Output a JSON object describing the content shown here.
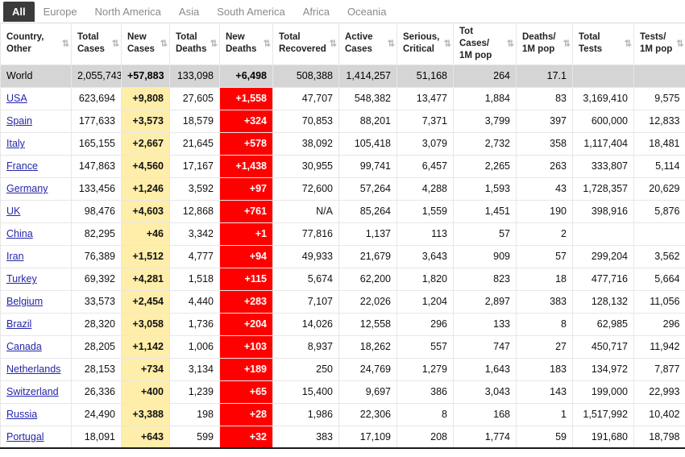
{
  "colors": {
    "active_tab_bg": "#3B3B3B",
    "active_tab_text": "#FFFFFF",
    "tab_text": "#8A8A8A",
    "new_cases_bg": "#FFEEAA",
    "new_deaths_bg": "#FF0000",
    "new_deaths_text": "#FFFFFF",
    "world_row_bg": "#D5D5D5",
    "link_color": "#2525AA",
    "border_color": "#E7E7E7"
  },
  "tabs": {
    "items": [
      {
        "label": "All",
        "active": true
      },
      {
        "label": "Europe",
        "active": false
      },
      {
        "label": "North America",
        "active": false
      },
      {
        "label": "Asia",
        "active": false
      },
      {
        "label": "South America",
        "active": false
      },
      {
        "label": "Africa",
        "active": false
      },
      {
        "label": "Oceania",
        "active": false
      }
    ]
  },
  "table": {
    "sort_icon": "⇅",
    "columns": [
      {
        "label": "Country,\nOther"
      },
      {
        "label": "Total\nCases"
      },
      {
        "label": "New\nCases"
      },
      {
        "label": "Total\nDeaths"
      },
      {
        "label": "New\nDeaths"
      },
      {
        "label": "Total\nRecovered"
      },
      {
        "label": "Active\nCases"
      },
      {
        "label": "Serious,\nCritical"
      },
      {
        "label": "Tot Cases/\n1M pop"
      },
      {
        "label": "Deaths/\n1M pop"
      },
      {
        "label": "Total\nTests"
      },
      {
        "label": "Tests/\n1M pop"
      }
    ],
    "rows": [
      {
        "country": "World",
        "is_world": true,
        "cells": [
          "2,055,743",
          "+57,883",
          "133,098",
          "+6,498",
          "508,388",
          "1,414,257",
          "51,168",
          "264",
          "17.1",
          "",
          ""
        ]
      },
      {
        "country": "USA",
        "cells": [
          "623,694",
          "+9,808",
          "27,605",
          "+1,558",
          "47,707",
          "548,382",
          "13,477",
          "1,884",
          "83",
          "3,169,410",
          "9,575"
        ]
      },
      {
        "country": "Spain",
        "cells": [
          "177,633",
          "+3,573",
          "18,579",
          "+324",
          "70,853",
          "88,201",
          "7,371",
          "3,799",
          "397",
          "600,000",
          "12,833"
        ]
      },
      {
        "country": "Italy",
        "cells": [
          "165,155",
          "+2,667",
          "21,645",
          "+578",
          "38,092",
          "105,418",
          "3,079",
          "2,732",
          "358",
          "1,117,404",
          "18,481"
        ]
      },
      {
        "country": "France",
        "cells": [
          "147,863",
          "+4,560",
          "17,167",
          "+1,438",
          "30,955",
          "99,741",
          "6,457",
          "2,265",
          "263",
          "333,807",
          "5,114"
        ]
      },
      {
        "country": "Germany",
        "cells": [
          "133,456",
          "+1,246",
          "3,592",
          "+97",
          "72,600",
          "57,264",
          "4,288",
          "1,593",
          "43",
          "1,728,357",
          "20,629"
        ]
      },
      {
        "country": "UK",
        "cells": [
          "98,476",
          "+4,603",
          "12,868",
          "+761",
          "N/A",
          "85,264",
          "1,559",
          "1,451",
          "190",
          "398,916",
          "5,876"
        ]
      },
      {
        "country": "China",
        "cells": [
          "82,295",
          "+46",
          "3,342",
          "+1",
          "77,816",
          "1,137",
          "113",
          "57",
          "2",
          "",
          ""
        ]
      },
      {
        "country": "Iran",
        "cells": [
          "76,389",
          "+1,512",
          "4,777",
          "+94",
          "49,933",
          "21,679",
          "3,643",
          "909",
          "57",
          "299,204",
          "3,562"
        ]
      },
      {
        "country": "Turkey",
        "cells": [
          "69,392",
          "+4,281",
          "1,518",
          "+115",
          "5,674",
          "62,200",
          "1,820",
          "823",
          "18",
          "477,716",
          "5,664"
        ]
      },
      {
        "country": "Belgium",
        "cells": [
          "33,573",
          "+2,454",
          "4,440",
          "+283",
          "7,107",
          "22,026",
          "1,204",
          "2,897",
          "383",
          "128,132",
          "11,056"
        ]
      },
      {
        "country": "Brazil",
        "cells": [
          "28,320",
          "+3,058",
          "1,736",
          "+204",
          "14,026",
          "12,558",
          "296",
          "133",
          "8",
          "62,985",
          "296"
        ]
      },
      {
        "country": "Canada",
        "cells": [
          "28,205",
          "+1,142",
          "1,006",
          "+103",
          "8,937",
          "18,262",
          "557",
          "747",
          "27",
          "450,717",
          "11,942"
        ]
      },
      {
        "country": "Netherlands",
        "cells": [
          "28,153",
          "+734",
          "3,134",
          "+189",
          "250",
          "24,769",
          "1,279",
          "1,643",
          "183",
          "134,972",
          "7,877"
        ]
      },
      {
        "country": "Switzerland",
        "cells": [
          "26,336",
          "+400",
          "1,239",
          "+65",
          "15,400",
          "9,697",
          "386",
          "3,043",
          "143",
          "199,000",
          "22,993"
        ]
      },
      {
        "country": "Russia",
        "cells": [
          "24,490",
          "+3,388",
          "198",
          "+28",
          "1,986",
          "22,306",
          "8",
          "168",
          "1",
          "1,517,992",
          "10,402"
        ]
      },
      {
        "country": "Portugal",
        "cells": [
          "18,091",
          "+643",
          "599",
          "+32",
          "383",
          "17,109",
          "208",
          "1,774",
          "59",
          "191,680",
          "18,798"
        ]
      }
    ]
  }
}
